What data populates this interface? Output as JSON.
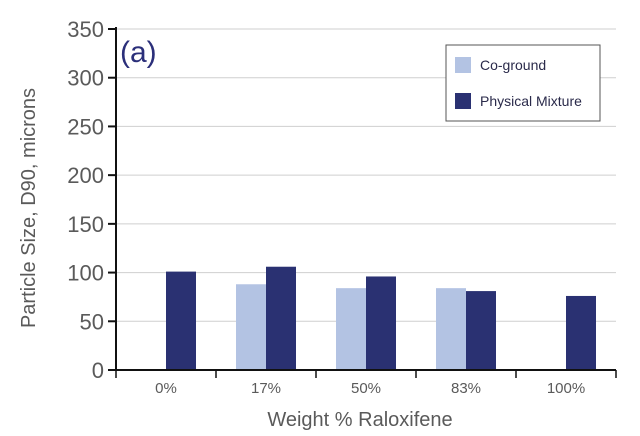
{
  "chart_data": {
    "type": "bar",
    "panel_label": "(a)",
    "categories": [
      "0%",
      "17%",
      "50%",
      "83%",
      "100%"
    ],
    "series": [
      {
        "name": "Co-ground",
        "color": "#b3c3e3",
        "values": [
          null,
          88,
          84,
          84,
          null
        ]
      },
      {
        "name": "Physical Mixture",
        "color": "#2a3172",
        "values": [
          101,
          106,
          96,
          81,
          76
        ]
      }
    ],
    "xlabel": "Weight % Raloxifene",
    "ylabel": "Particle Size, D90, microns",
    "ylim": [
      0,
      350
    ],
    "yticks": [
      0,
      50,
      100,
      150,
      200,
      250,
      300,
      350
    ],
    "grid": true,
    "legend_position": "top-right"
  }
}
